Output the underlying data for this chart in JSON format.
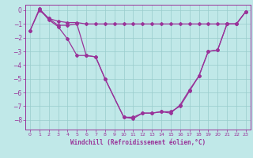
{
  "xlabel": "Windchill (Refroidissement éolien,°C)",
  "bg_color": "#c0e8e8",
  "line_color": "#993399",
  "grid_color": "#99cccc",
  "ylim": [
    -8.7,
    0.4
  ],
  "xlim": [
    -0.5,
    23.5
  ],
  "yticks": [
    0,
    -1,
    -2,
    -3,
    -4,
    -5,
    -6,
    -7,
    -8
  ],
  "xticks": [
    0,
    1,
    2,
    3,
    4,
    5,
    6,
    7,
    8,
    9,
    10,
    11,
    12,
    13,
    14,
    15,
    16,
    17,
    18,
    19,
    20,
    21,
    22,
    23
  ],
  "series_A_x": [
    0,
    1,
    2,
    3,
    4,
    5,
    6,
    7,
    8,
    9,
    10,
    11,
    12,
    13,
    14,
    15,
    16,
    17,
    18,
    19,
    20,
    21,
    22,
    23
  ],
  "series_A_y": [
    -1.5,
    0.0,
    -0.6,
    -0.8,
    -0.9,
    -0.9,
    -1.0,
    -1.0,
    -1.0,
    -1.0,
    -1.0,
    -1.0,
    -1.0,
    -1.0,
    -1.0,
    -1.0,
    -1.0,
    -1.0,
    -1.0,
    -1.0,
    -1.0,
    -1.0,
    -1.0,
    -0.1
  ],
  "series_B_x": [
    1,
    2,
    3,
    4,
    5,
    6,
    7,
    8,
    10,
    11,
    12,
    13,
    14,
    15,
    16,
    17,
    18,
    19,
    20,
    21,
    22,
    23
  ],
  "series_B_y": [
    0.1,
    -0.6,
    -1.1,
    -1.1,
    -1.0,
    -3.3,
    -3.4,
    -5.0,
    -7.8,
    -7.9,
    -7.5,
    -7.5,
    -7.4,
    -7.5,
    -6.9,
    -5.8,
    -4.8,
    -3.0,
    -2.9,
    -1.0,
    -1.0,
    -0.1
  ],
  "series_C_x": [
    0,
    1,
    2,
    3,
    4,
    5,
    6,
    7,
    8,
    10,
    11,
    12,
    13,
    14,
    15,
    16,
    17,
    18,
    19,
    20,
    21,
    22,
    23
  ],
  "series_C_y": [
    -1.5,
    0.1,
    -0.7,
    -1.2,
    -2.1,
    -3.3,
    -3.3,
    -3.4,
    -5.0,
    -7.8,
    -7.8,
    -7.5,
    -7.5,
    -7.4,
    -7.4,
    -7.0,
    -5.9,
    -4.8,
    -3.0,
    -2.9,
    -1.0,
    -1.0,
    -0.1
  ]
}
